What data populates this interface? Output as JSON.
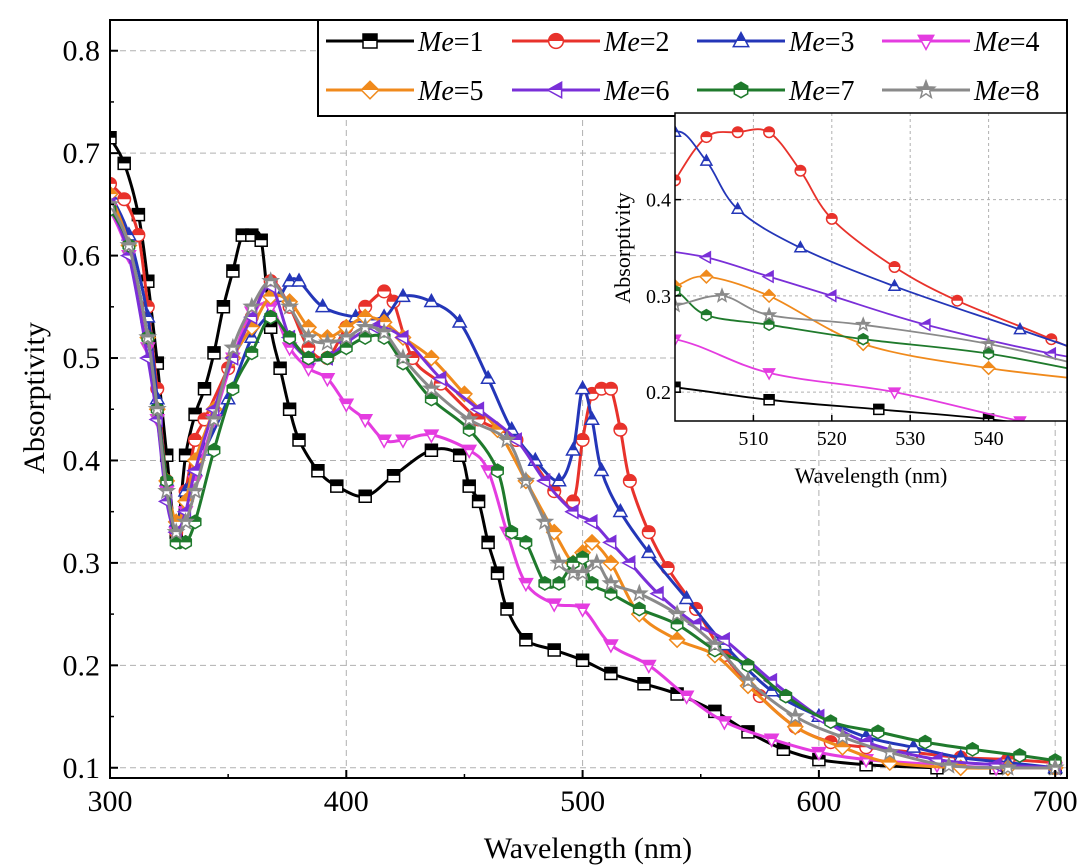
{
  "chart_data": {
    "type": "line",
    "xlabel": "Wavelength (nm)",
    "ylabel": "Absorptivity",
    "xlim": [
      300,
      705
    ],
    "ylim": [
      0.09,
      0.83
    ],
    "xticks": [
      300,
      400,
      500,
      600,
      700
    ],
    "yticks": [
      0.1,
      0.2,
      0.3,
      0.4,
      0.5,
      0.6,
      0.7,
      0.8
    ],
    "grid": true,
    "legend": {
      "placement": "top-right",
      "prefix": "Me",
      "entries": [
        "=1",
        "=2",
        "=3",
        "=4",
        "=5",
        "=6",
        "=7",
        "=8"
      ]
    },
    "series": [
      {
        "name": "Me=1",
        "color": "#000000",
        "marker": "square",
        "x": [
          300,
          306,
          312,
          316,
          320,
          324,
          328,
          332,
          336,
          340,
          344,
          348,
          352,
          356,
          360,
          364,
          368,
          372,
          376,
          380,
          388,
          396,
          408,
          420,
          436,
          448,
          452,
          456,
          460,
          464,
          468,
          476,
          488,
          500,
          512,
          526,
          540,
          556,
          570,
          585,
          600,
          620,
          650,
          675,
          700
        ],
        "y": [
          0.715,
          0.69,
          0.64,
          0.575,
          0.495,
          0.405,
          0.33,
          0.405,
          0.445,
          0.47,
          0.505,
          0.55,
          0.585,
          0.62,
          0.62,
          0.615,
          0.53,
          0.49,
          0.45,
          0.42,
          0.39,
          0.375,
          0.365,
          0.385,
          0.41,
          0.405,
          0.375,
          0.36,
          0.32,
          0.29,
          0.255,
          0.225,
          0.215,
          0.205,
          0.192,
          0.182,
          0.172,
          0.155,
          0.135,
          0.118,
          0.108,
          0.103,
          0.1,
          0.1,
          0.1
        ]
      },
      {
        "name": "Me=2",
        "color": "#e8322b",
        "marker": "circle",
        "x": [
          300,
          306,
          312,
          316,
          320,
          324,
          328,
          332,
          336,
          340,
          350,
          360,
          368,
          376,
          384,
          392,
          400,
          408,
          416,
          420,
          428,
          440,
          456,
          472,
          488,
          496,
          500,
          504,
          508,
          512,
          516,
          520,
          528,
          536,
          548,
          560,
          575,
          590,
          605,
          620,
          640,
          660,
          680,
          700
        ],
        "y": [
          0.67,
          0.655,
          0.62,
          0.55,
          0.47,
          0.38,
          0.33,
          0.37,
          0.42,
          0.44,
          0.49,
          0.54,
          0.575,
          0.55,
          0.51,
          0.5,
          0.53,
          0.55,
          0.565,
          0.555,
          0.5,
          0.475,
          0.44,
          0.42,
          0.37,
          0.36,
          0.42,
          0.465,
          0.47,
          0.47,
          0.43,
          0.38,
          0.33,
          0.295,
          0.255,
          0.21,
          0.17,
          0.14,
          0.125,
          0.12,
          0.115,
          0.11,
          0.108,
          0.105
        ]
      },
      {
        "name": "Me=3",
        "color": "#2436b8",
        "marker": "triangle-up",
        "x": [
          300,
          308,
          316,
          320,
          324,
          328,
          332,
          336,
          340,
          350,
          360,
          368,
          372,
          376,
          380,
          390,
          404,
          416,
          424,
          436,
          448,
          460,
          470,
          480,
          490,
          496,
          500,
          504,
          508,
          516,
          528,
          544,
          560,
          580,
          600,
          620,
          640,
          660,
          680,
          700
        ],
        "y": [
          0.66,
          0.62,
          0.54,
          0.46,
          0.38,
          0.34,
          0.37,
          0.39,
          0.41,
          0.46,
          0.52,
          0.545,
          0.56,
          0.575,
          0.575,
          0.55,
          0.54,
          0.54,
          0.56,
          0.555,
          0.535,
          0.48,
          0.43,
          0.4,
          0.38,
          0.41,
          0.47,
          0.44,
          0.39,
          0.35,
          0.31,
          0.265,
          0.22,
          0.175,
          0.15,
          0.13,
          0.12,
          0.11,
          0.105,
          0.1
        ]
      },
      {
        "name": "Me=4",
        "color": "#e43ce0",
        "marker": "triangle-down",
        "x": [
          300,
          308,
          316,
          320,
          324,
          328,
          332,
          336,
          344,
          352,
          360,
          368,
          376,
          384,
          392,
          400,
          408,
          416,
          424,
          436,
          452,
          460,
          468,
          476,
          488,
          500,
          512,
          528,
          544,
          560,
          580,
          600,
          620,
          650,
          675,
          700
        ],
        "y": [
          0.645,
          0.6,
          0.51,
          0.44,
          0.37,
          0.33,
          0.35,
          0.38,
          0.44,
          0.5,
          0.545,
          0.55,
          0.51,
          0.49,
          0.48,
          0.455,
          0.44,
          0.42,
          0.42,
          0.425,
          0.41,
          0.39,
          0.33,
          0.28,
          0.26,
          0.255,
          0.22,
          0.2,
          0.17,
          0.145,
          0.128,
          0.115,
          0.108,
          0.103,
          0.1,
          0.1
        ]
      },
      {
        "name": "Me=5",
        "color": "#f08a1c",
        "marker": "diamond",
        "x": [
          300,
          308,
          316,
          320,
          324,
          328,
          332,
          336,
          344,
          352,
          360,
          368,
          376,
          384,
          392,
          400,
          408,
          416,
          424,
          436,
          450,
          464,
          476,
          488,
          496,
          500,
          504,
          512,
          524,
          540,
          556,
          570,
          590,
          610,
          630,
          660,
          680,
          700
        ],
        "y": [
          0.66,
          0.61,
          0.52,
          0.45,
          0.38,
          0.34,
          0.36,
          0.4,
          0.45,
          0.5,
          0.53,
          0.56,
          0.555,
          0.53,
          0.52,
          0.53,
          0.54,
          0.535,
          0.52,
          0.5,
          0.465,
          0.43,
          0.38,
          0.33,
          0.3,
          0.31,
          0.32,
          0.3,
          0.25,
          0.225,
          0.21,
          0.18,
          0.14,
          0.12,
          0.105,
          0.1,
          0.1,
          0.1
        ]
      },
      {
        "name": "Me=6",
        "color": "#7a2fd8",
        "marker": "triangle-left",
        "x": [
          300,
          308,
          316,
          320,
          324,
          328,
          332,
          336,
          344,
          352,
          360,
          368,
          376,
          384,
          392,
          400,
          412,
          424,
          440,
          456,
          472,
          484,
          496,
          504,
          512,
          520,
          532,
          548,
          560,
          580,
          600,
          620,
          650,
          675,
          700
        ],
        "y": [
          0.65,
          0.6,
          0.5,
          0.44,
          0.36,
          0.33,
          0.35,
          0.39,
          0.45,
          0.5,
          0.54,
          0.57,
          0.52,
          0.5,
          0.5,
          0.515,
          0.53,
          0.52,
          0.48,
          0.45,
          0.42,
          0.38,
          0.35,
          0.34,
          0.32,
          0.3,
          0.27,
          0.24,
          0.225,
          0.185,
          0.15,
          0.125,
          0.108,
          0.103,
          0.1
        ]
      },
      {
        "name": "Me=7",
        "color": "#1f7a2c",
        "marker": "hexagon",
        "x": [
          300,
          308,
          316,
          320,
          324,
          328,
          332,
          336,
          344,
          352,
          360,
          368,
          376,
          384,
          392,
          400,
          408,
          416,
          424,
          436,
          452,
          464,
          470,
          476,
          484,
          490,
          496,
          500,
          504,
          512,
          524,
          540,
          556,
          570,
          586,
          605,
          625,
          645,
          665,
          685,
          700
        ],
        "y": [
          0.645,
          0.61,
          0.52,
          0.45,
          0.38,
          0.32,
          0.32,
          0.34,
          0.41,
          0.47,
          0.505,
          0.54,
          0.52,
          0.5,
          0.5,
          0.51,
          0.52,
          0.52,
          0.495,
          0.46,
          0.43,
          0.39,
          0.33,
          0.32,
          0.28,
          0.28,
          0.3,
          0.305,
          0.28,
          0.27,
          0.255,
          0.24,
          0.215,
          0.2,
          0.17,
          0.145,
          0.135,
          0.125,
          0.118,
          0.112,
          0.107
        ]
      },
      {
        "name": "Me=8",
        "color": "#8a8a8a",
        "marker": "star",
        "x": [
          300,
          308,
          316,
          320,
          324,
          328,
          332,
          336,
          344,
          352,
          360,
          368,
          376,
          384,
          392,
          400,
          408,
          416,
          424,
          436,
          452,
          468,
          476,
          484,
          490,
          496,
          500,
          506,
          512,
          524,
          540,
          556,
          570,
          590,
          610,
          630,
          655,
          680,
          700
        ],
        "y": [
          0.65,
          0.61,
          0.52,
          0.45,
          0.37,
          0.33,
          0.34,
          0.37,
          0.44,
          0.51,
          0.55,
          0.575,
          0.55,
          0.52,
          0.515,
          0.52,
          0.53,
          0.525,
          0.5,
          0.47,
          0.44,
          0.42,
          0.38,
          0.34,
          0.3,
          0.29,
          0.29,
          0.3,
          0.28,
          0.27,
          0.25,
          0.22,
          0.185,
          0.15,
          0.13,
          0.115,
          0.102,
          0.1,
          0.1
        ]
      }
    ],
    "inset": {
      "xlabel": "Wavelength (nm)",
      "ylabel": "Absorptivity",
      "xlim": [
        500,
        550
      ],
      "ylim": [
        0.17,
        0.49
      ],
      "xticks": [
        510,
        520,
        530,
        540
      ],
      "yticks": [
        0.2,
        0.3,
        0.4
      ]
    }
  }
}
